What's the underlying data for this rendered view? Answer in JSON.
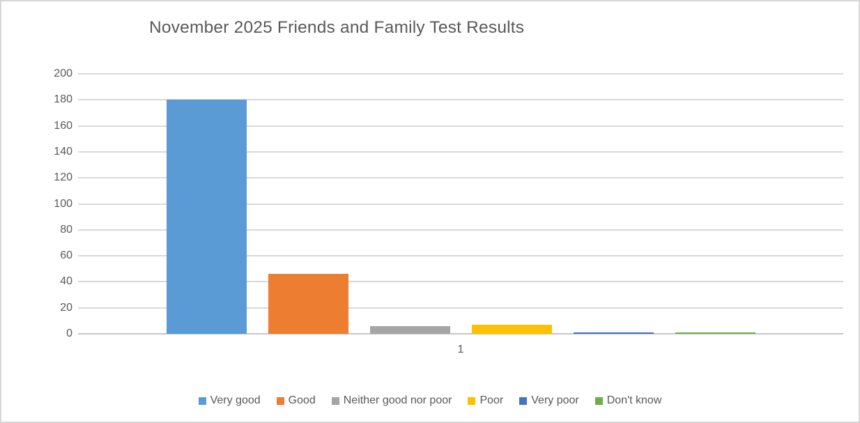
{
  "chart_data": {
    "type": "bar",
    "title": "November 2025 Friends and Family Test Results",
    "categories": [
      "1"
    ],
    "series": [
      {
        "name": "Very good",
        "values": [
          180
        ],
        "color": "#5B9BD5"
      },
      {
        "name": "Good",
        "values": [
          46
        ],
        "color": "#ED7D31"
      },
      {
        "name": "Neither good nor poor",
        "values": [
          6
        ],
        "color": "#A5A5A5"
      },
      {
        "name": "Poor",
        "values": [
          7
        ],
        "color": "#FFC000"
      },
      {
        "name": "Very poor",
        "values": [
          1
        ],
        "color": "#4472C4"
      },
      {
        "name": "Don't know",
        "values": [
          1
        ],
        "color": "#70AD47"
      }
    ],
    "xlabel": "",
    "ylabel": "",
    "ylim": [
      0,
      200
    ],
    "yticks": [
      0,
      20,
      40,
      60,
      80,
      100,
      120,
      140,
      160,
      180,
      200
    ],
    "grid": true,
    "legend_position": "bottom"
  },
  "styles": {
    "text_color": "#595959",
    "gridline_color": "#D9D9D9",
    "axis_line_color": "#C6C6C6",
    "background": "#FFFFFF"
  }
}
